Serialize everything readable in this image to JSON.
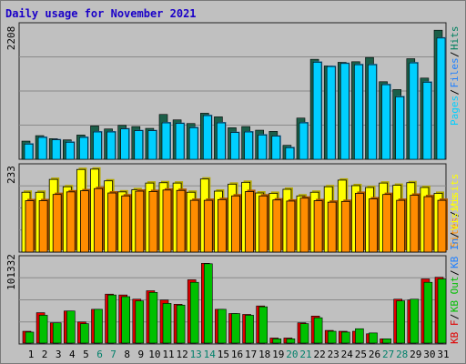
{
  "title": "Daily usage for November 2021",
  "colors": {
    "pages": "#00cfff",
    "pages_shade": "#1e6ba0",
    "files": "#1e7fff",
    "hits": "#00805f",
    "hits_dark": "#1b5e48",
    "visits": "#ffff00",
    "visits_shade": "#b4a800",
    "sites": "#ff8c00",
    "sites_shade": "#b05800",
    "kb_in": "#00c000",
    "kb_out": "#e00000",
    "weekend": "#00806a",
    "weekday": "#000000",
    "title": "#1a00c8"
  },
  "chart_data": [
    {
      "type": "bar",
      "categories": [
        "1",
        "2",
        "3",
        "4",
        "5",
        "6",
        "7",
        "8",
        "9",
        "10",
        "11",
        "12",
        "13",
        "14",
        "15",
        "16",
        "17",
        "18",
        "19",
        "20",
        "21",
        "22",
        "23",
        "24",
        "25",
        "26",
        "27",
        "28",
        "29",
        "30",
        "31"
      ],
      "weekend_days": [
        "6",
        "7",
        "13",
        "14",
        "20",
        "21",
        "27",
        "28"
      ],
      "ylabel": "2208",
      "ymax": 2208,
      "legend": [
        "Hits",
        "Files",
        "Pages"
      ],
      "series": [
        {
          "name": "Hits",
          "values": [
            300,
            390,
            340,
            320,
            400,
            550,
            500,
            560,
            540,
            510,
            740,
            650,
            590,
            760,
            700,
            520,
            540,
            480,
            460,
            230,
            680,
            1650,
            1540,
            1600,
            1610,
            1680,
            1280,
            1150,
            1660,
            1340,
            2130
          ]
        },
        {
          "name": "Files",
          "values": [
            250,
            360,
            320,
            280,
            360,
            450,
            450,
            500,
            470,
            470,
            600,
            590,
            520,
            720,
            600,
            440,
            450,
            400,
            380,
            190,
            600,
            1600,
            1530,
            1580,
            1560,
            1560,
            1230,
            1030,
            1590,
            1270,
            2000
          ]
        },
        {
          "name": "Pages",
          "values": [
            250,
            360,
            320,
            280,
            360,
            450,
            450,
            500,
            470,
            470,
            600,
            590,
            520,
            720,
            600,
            440,
            450,
            400,
            380,
            190,
            600,
            1600,
            1530,
            1580,
            1560,
            1560,
            1230,
            1030,
            1590,
            1270,
            2000
          ]
        }
      ]
    },
    {
      "type": "bar",
      "categories": [
        "1",
        "2",
        "3",
        "4",
        "5",
        "6",
        "7",
        "8",
        "9",
        "10",
        "11",
        "12",
        "13",
        "14",
        "15",
        "16",
        "17",
        "18",
        "19",
        "20",
        "21",
        "22",
        "23",
        "24",
        "25",
        "26",
        "27",
        "28",
        "29",
        "30",
        "31"
      ],
      "ylabel": "233",
      "ymax": 233,
      "legend": [
        "Visits",
        "Sites"
      ],
      "series": [
        {
          "name": "Visits",
          "values": [
            163,
            163,
            198,
            178,
            225,
            226,
            194,
            164,
            170,
            188,
            189,
            188,
            163,
            199,
            166,
            185,
            190,
            161,
            160,
            171,
            153,
            163,
            178,
            196,
            181,
            176,
            188,
            182,
            189,
            176,
            160
          ]
        },
        {
          "name": "Sites",
          "values": [
            140,
            140,
            157,
            164,
            167,
            173,
            161,
            153,
            166,
            165,
            169,
            168,
            141,
            141,
            143,
            153,
            165,
            153,
            142,
            139,
            147,
            140,
            136,
            138,
            160,
            145,
            157,
            141,
            155,
            151,
            141
          ]
        }
      ]
    },
    {
      "type": "bar",
      "categories": [
        "1",
        "2",
        "3",
        "4",
        "5",
        "6",
        "7",
        "8",
        "9",
        "10",
        "11",
        "12",
        "13",
        "14",
        "15",
        "16",
        "17",
        "18",
        "19",
        "20",
        "21",
        "22",
        "23",
        "24",
        "25",
        "26",
        "27",
        "28",
        "29",
        "30",
        "31"
      ],
      "ylabel": "101332",
      "ymax": 101332,
      "legend": [
        "Visits",
        "KB In",
        "KB Out",
        "KB F"
      ],
      "series": [
        {
          "name": "KB F",
          "values": [
            14000,
            36000,
            24000,
            38000,
            25000,
            40000,
            58000,
            57000,
            52000,
            62000,
            51000,
            46000,
            75000,
            94500,
            40000,
            35000,
            34000,
            44000,
            6000,
            6000,
            24000,
            32000,
            15000,
            14000,
            14000,
            11000,
            5000,
            52000,
            51000,
            76000,
            78000
          ]
        },
        {
          "name": "KB In",
          "values": [
            13000,
            33000,
            24000,
            38000,
            23000,
            40000,
            57000,
            55000,
            50000,
            60000,
            47000,
            45000,
            72000,
            94000,
            40000,
            35000,
            33000,
            43000,
            5000,
            5000,
            23000,
            30000,
            14000,
            13000,
            17000,
            12000,
            5000,
            50000,
            52000,
            72000,
            76000
          ]
        }
      ]
    }
  ]
}
